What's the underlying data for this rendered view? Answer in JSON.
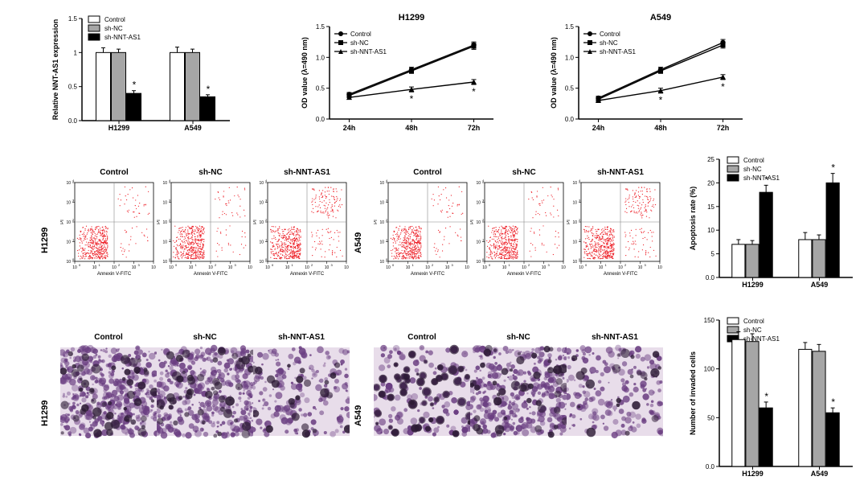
{
  "colors": {
    "white": "#ffffff",
    "gray": "#a6a6a6",
    "black": "#000000",
    "axis": "#000000",
    "scatter_red": "#ed1c24",
    "invasion_purple": "#6b3f82",
    "invasion_bg": "#e8ddea"
  },
  "row1": {
    "barChart": {
      "ylabel": "Relative NNT-AS1 expression",
      "ylim": [
        0,
        1.5
      ],
      "ytick_step": 0.5,
      "groups": [
        "H1299",
        "A549"
      ],
      "legend": [
        "Control",
        "sh-NC",
        "sh-NNT-AS1"
      ],
      "values": {
        "H1299": [
          1.0,
          1.0,
          0.4
        ],
        "A549": [
          1.0,
          1.0,
          0.35
        ]
      },
      "err": {
        "H1299": [
          0.07,
          0.05,
          0.04
        ],
        "A549": [
          0.08,
          0.05,
          0.03
        ]
      },
      "sig": {
        "H1299": [
          false,
          false,
          true
        ],
        "A549": [
          false,
          false,
          true
        ]
      }
    },
    "lineCharts": [
      {
        "title": "H1299",
        "ylabel": "OD value (λ=490 nm)",
        "xlabels": [
          "24h",
          "48h",
          "72h"
        ],
        "ylim": [
          0.0,
          1.5
        ],
        "ytick_step": 0.5,
        "legend": [
          "Control",
          "sh-NC",
          "sh-NNT-AS1"
        ],
        "series": {
          "Control": [
            0.4,
            0.8,
            1.2
          ],
          "sh-NC": [
            0.38,
            0.78,
            1.18
          ],
          "sh-NNT-AS1": [
            0.35,
            0.48,
            0.6
          ]
        },
        "err": {
          "Control": [
            0.03,
            0.04,
            0.05
          ],
          "sh-NC": [
            0.03,
            0.04,
            0.05
          ],
          "sh-NNT-AS1": [
            0.03,
            0.04,
            0.04
          ]
        },
        "markers": [
          "circle",
          "square",
          "triangle"
        ],
        "sig_x": [
          1,
          2
        ]
      },
      {
        "title": "A549",
        "ylabel": "OD value (λ=490 nm)",
        "xlabels": [
          "24h",
          "48h",
          "72h"
        ],
        "ylim": [
          0.0,
          1.5
        ],
        "ytick_step": 0.5,
        "legend": [
          "Control",
          "sh-NC",
          "sh-NNT-AS1"
        ],
        "series": {
          "Control": [
            0.34,
            0.8,
            1.24
          ],
          "sh-NC": [
            0.32,
            0.78,
            1.2
          ],
          "sh-NNT-AS1": [
            0.3,
            0.46,
            0.68
          ]
        },
        "err": {
          "Control": [
            0.03,
            0.04,
            0.05
          ],
          "sh-NC": [
            0.03,
            0.04,
            0.05
          ],
          "sh-NNT-AS1": [
            0.03,
            0.04,
            0.04
          ]
        },
        "markers": [
          "circle",
          "square",
          "triangle"
        ],
        "sig_x": [
          1,
          2
        ]
      }
    ]
  },
  "row2": {
    "rowLabels": [
      "H1299",
      "A549"
    ],
    "colLabels": [
      "Control",
      "sh-NC",
      "sh-NNT-AS1"
    ],
    "yAxisLabel": "PI",
    "xAxisLabel": "Annexin V-FITC",
    "barChart": {
      "ylabel": "Apoptosis rate (%)",
      "ylim": [
        0,
        25
      ],
      "ytick_step": 5,
      "groups": [
        "H1299",
        "A549"
      ],
      "legend": [
        "Control",
        "sh-NC",
        "sh-NNT-AS1"
      ],
      "values": {
        "H1299": [
          7,
          7,
          18
        ],
        "A549": [
          8,
          8,
          20
        ]
      },
      "err": {
        "H1299": [
          1.0,
          0.8,
          1.5
        ],
        "A549": [
          1.5,
          1.0,
          2.0
        ]
      },
      "sig": {
        "H1299": [
          false,
          false,
          true
        ],
        "A549": [
          false,
          false,
          true
        ]
      }
    }
  },
  "row3": {
    "rowLabels": [
      "H1299",
      "A549"
    ],
    "colLabels": [
      "Control",
      "sh-NC",
      "sh-NNT-AS1"
    ],
    "barChart": {
      "ylabel": "Number of invaded cells",
      "ylim": [
        0,
        150
      ],
      "ytick_step": 50,
      "groups": [
        "H1299",
        "A549"
      ],
      "legend": [
        "Control",
        "sh-NC",
        "sh-NNT-AS1"
      ],
      "values": {
        "H1299": [
          130,
          128,
          60
        ],
        "A549": [
          120,
          118,
          55
        ]
      },
      "err": {
        "H1299": [
          8,
          8,
          6
        ],
        "A549": [
          7,
          7,
          5
        ]
      },
      "sig": {
        "H1299": [
          false,
          false,
          true
        ],
        "A549": [
          false,
          false,
          true
        ]
      }
    }
  }
}
